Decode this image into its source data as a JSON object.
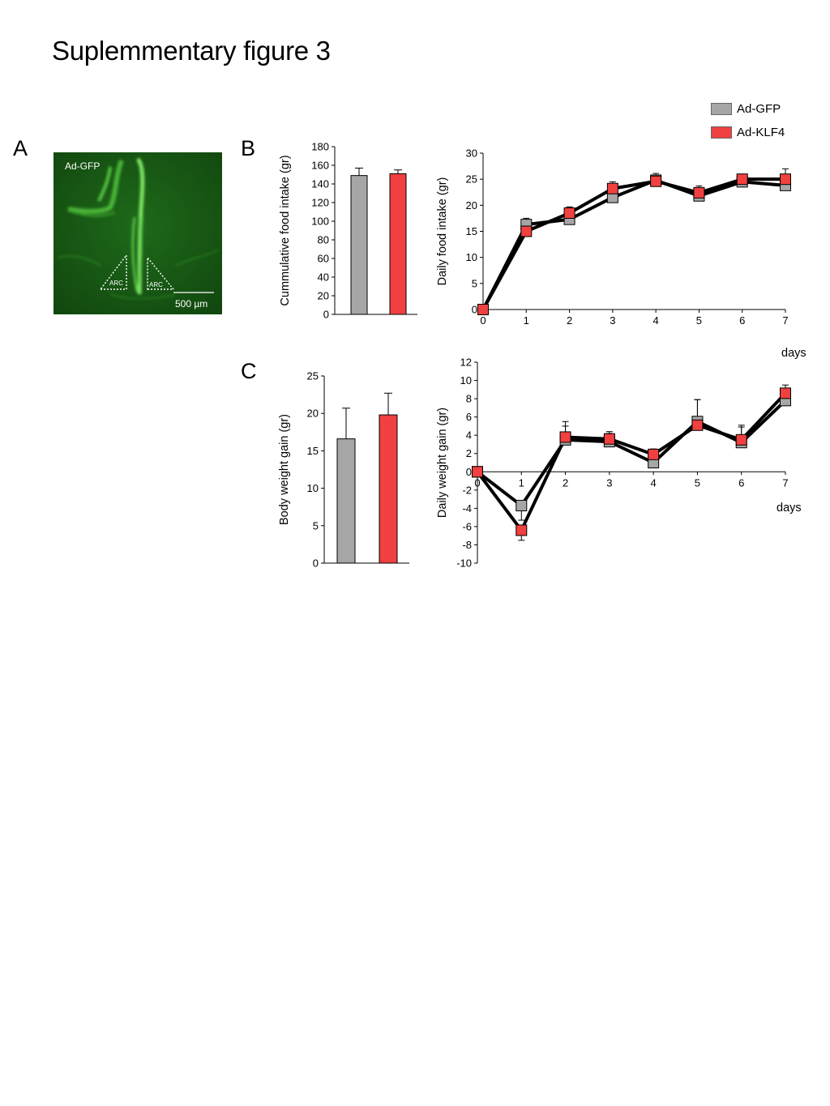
{
  "figure_title": "Suplemmentary figure 3",
  "panel_letters": {
    "a": "A",
    "b": "B",
    "c": "C"
  },
  "legend": {
    "items": [
      {
        "label": "Ad-GFP",
        "color": "#a6a6a6"
      },
      {
        "label": "Ad-KLF4",
        "color": "#f0403f"
      }
    ]
  },
  "micrograph": {
    "label": "Ad-GFP",
    "region_left": "ARC",
    "region_right": "ARC",
    "scale_bar": "500 µm"
  },
  "chart_data": [
    {
      "id": "cumulative-food-intake",
      "type": "bar",
      "categories": [
        "Ad-GFP",
        "Ad-KLF4"
      ],
      "values": [
        149,
        151
      ],
      "errors": [
        8,
        4
      ],
      "colors": [
        "#a6a6a6",
        "#f0403f"
      ],
      "title": "",
      "xlabel": "",
      "ylabel": "Cummulative food  intake (gr)",
      "ylim": [
        0,
        180
      ],
      "yticks": [
        0,
        20,
        40,
        60,
        80,
        100,
        120,
        140,
        160,
        180
      ]
    },
    {
      "id": "daily-food-intake",
      "type": "line",
      "x": [
        0,
        1,
        2,
        3,
        4,
        5,
        6,
        7
      ],
      "series": [
        {
          "name": "Ad-GFP",
          "color": "#a6a6a6",
          "values": [
            0,
            16.3,
            17.3,
            21.5,
            24.8,
            21.8,
            24.5,
            23.8
          ],
          "errors": [
            0,
            1.2,
            1.6,
            1.6,
            1.0,
            0.9,
            0.9,
            1.6
          ]
        },
        {
          "name": "Ad-KLF4",
          "color": "#f0403f",
          "values": [
            0,
            15.0,
            18.5,
            23.2,
            24.6,
            22.4,
            25.0,
            25.0
          ],
          "errors": [
            0,
            1.8,
            1.2,
            1.3,
            1.5,
            1.3,
            0.8,
            2.0
          ]
        }
      ],
      "title": "",
      "xlabel": "days",
      "ylabel": "Daily food intake (gr)",
      "xlim": [
        0,
        7
      ],
      "ylim": [
        0,
        30
      ],
      "yticks": [
        0,
        5,
        10,
        15,
        20,
        25,
        30
      ]
    },
    {
      "id": "body-weight-gain",
      "type": "bar",
      "categories": [
        "Ad-GFP",
        "Ad-KLF4"
      ],
      "values": [
        16.6,
        19.8
      ],
      "errors": [
        4.1,
        2.9
      ],
      "colors": [
        "#a6a6a6",
        "#f0403f"
      ],
      "title": "",
      "xlabel": "",
      "ylabel": "Body weight  gain (gr)",
      "ylim": [
        0,
        25
      ],
      "yticks": [
        0,
        5,
        10,
        15,
        20,
        25
      ]
    },
    {
      "id": "daily-weight-gain",
      "type": "line",
      "x": [
        0,
        1,
        2,
        3,
        4,
        5,
        6,
        7
      ],
      "series": [
        {
          "name": "Ad-GFP",
          "color": "#a6a6a6",
          "values": [
            0,
            -3.7,
            3.5,
            3.3,
            1.0,
            5.5,
            3.2,
            7.8
          ],
          "errors": [
            0,
            1.6,
            2.0,
            0.9,
            0.9,
            2.4,
            1.9,
            1.2
          ]
        },
        {
          "name": "Ad-KLF4",
          "color": "#f0403f",
          "values": [
            0,
            -6.4,
            3.8,
            3.6,
            1.9,
            5.1,
            3.5,
            8.6
          ],
          "errors": [
            0,
            1.1,
            1.2,
            0.8,
            0.6,
            2.8,
            1.4,
            0.9
          ]
        }
      ],
      "title": "",
      "xlabel": "days",
      "ylabel": "Daily weight gain (gr)",
      "xlim": [
        0,
        7
      ],
      "ylim": [
        -10,
        12
      ],
      "yticks": [
        -10,
        -8,
        -6,
        -4,
        -2,
        0,
        2,
        4,
        6,
        8,
        10,
        12
      ]
    }
  ]
}
